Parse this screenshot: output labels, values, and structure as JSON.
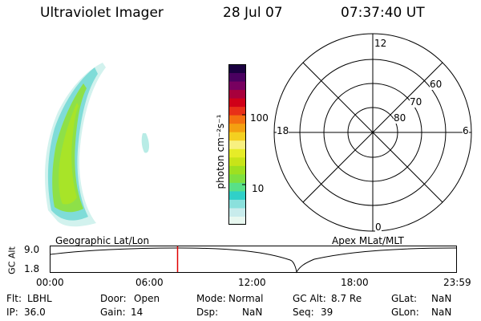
{
  "header": {
    "title": "Ultraviolet Imager",
    "date": "28 Jul 07",
    "time": "07:37:40 UT"
  },
  "colorbar": {
    "label": "photon cm⁻²s⁻¹",
    "ticks": [
      "100",
      "10"
    ],
    "colors": [
      "#e8f8f0",
      "#c8ecec",
      "#8ae0dc",
      "#30d0c8",
      "#58e088",
      "#7ee040",
      "#9ee020",
      "#c8e418",
      "#e6ec28",
      "#f8f080",
      "#f4d020",
      "#f4a010",
      "#f47010",
      "#e83018",
      "#d00018",
      "#a8003c",
      "#780060",
      "#4a0060",
      "#1a0040"
    ]
  },
  "polar": {
    "labels": {
      "top": "12",
      "bottom": "0",
      "left": "18",
      "right": "6"
    },
    "lat_labels": [
      "60",
      "70",
      "80"
    ]
  },
  "strip": {
    "left_title": "Geographic Lat/Lon",
    "right_title": "Apex  MLat/MLT",
    "yaxis_label": "GC Alt",
    "ytick_top": "9.0",
    "ytick_bottom": "1.8",
    "xticks": [
      "00:00",
      "06:00",
      "12:00",
      "18:00",
      "23:59"
    ],
    "marker_color": "#e00000"
  },
  "info": {
    "row1": [
      {
        "key": "Flt:",
        "val": "LBHL"
      },
      {
        "key": "Door:",
        "val": "Open"
      },
      {
        "key": "Mode:",
        "val": "Normal"
      },
      {
        "key": "GC Alt:",
        "val": "8.7 Re"
      },
      {
        "key": "GLat:",
        "val": "NaN"
      }
    ],
    "row2": [
      {
        "key": "IP:",
        "val": "36.0"
      },
      {
        "key": "Gain:",
        "val": "14"
      },
      {
        "key": "Dsp:",
        "val": "NaN"
      },
      {
        "key": "Seq:",
        "val": "39"
      },
      {
        "key": "GLon:",
        "val": "NaN"
      }
    ]
  }
}
